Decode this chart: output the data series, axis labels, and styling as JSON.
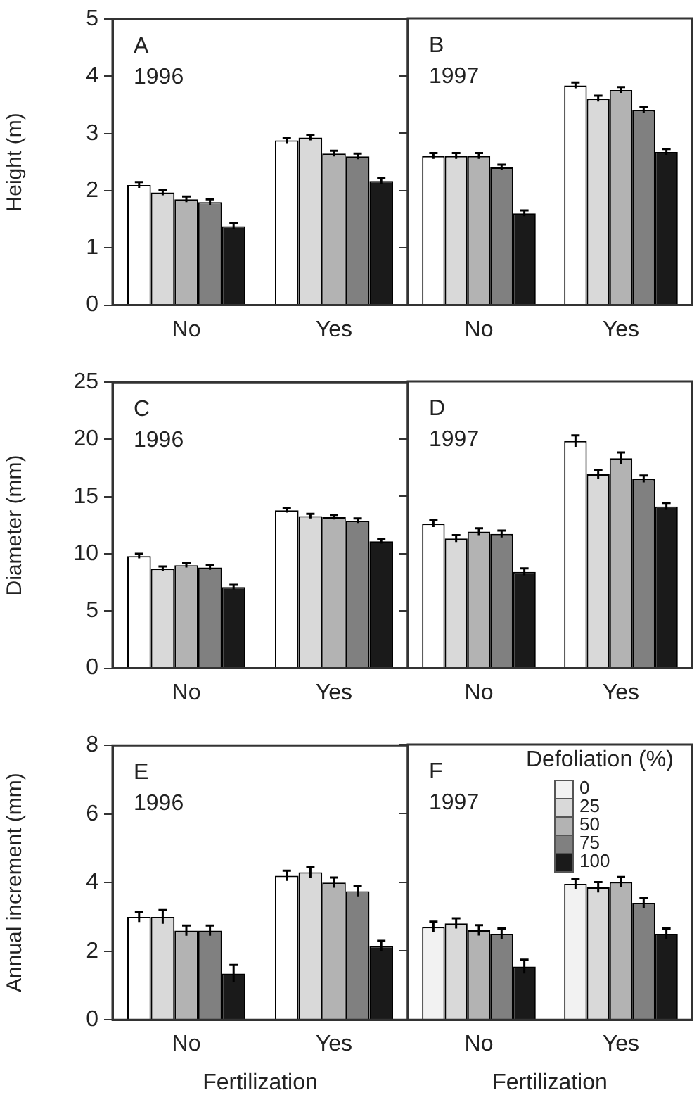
{
  "chart_data": [
    {
      "type": "bar",
      "title": "A",
      "subtitle": "1996",
      "ylabel": "Height (m)",
      "categories": [
        "No",
        "Yes"
      ],
      "ylim": [
        0,
        5
      ],
      "yticks": [
        0,
        1,
        2,
        3,
        4,
        5
      ],
      "legend": false,
      "series": [
        {
          "color": "#ffffff",
          "values": [
            2.1,
            2.88
          ],
          "errors": [
            0.05,
            0.05
          ]
        },
        {
          "color": "#d9d9d9",
          "values": [
            1.97,
            2.93
          ],
          "errors": [
            0.05,
            0.05
          ]
        },
        {
          "color": "#b3b3b3",
          "values": [
            1.85,
            2.65
          ],
          "errors": [
            0.05,
            0.05
          ]
        },
        {
          "color": "#808080",
          "values": [
            1.8,
            2.6
          ],
          "errors": [
            0.05,
            0.05
          ]
        },
        {
          "color": "#1a1a1a",
          "values": [
            1.38,
            2.17
          ],
          "errors": [
            0.05,
            0.05
          ]
        }
      ]
    },
    {
      "type": "bar",
      "title": "B",
      "subtitle": "1997",
      "categories": [
        "No",
        "Yes"
      ],
      "ylim": [
        0,
        5
      ],
      "yticks": [
        0,
        1,
        2,
        3,
        4,
        5
      ],
      "tick_labels": "x",
      "legend": false,
      "series": [
        {
          "color": "#ffffff",
          "values": [
            2.6,
            3.83
          ],
          "errors": [
            0.05,
            0.05
          ]
        },
        {
          "color": "#d9d9d9",
          "values": [
            2.6,
            3.6
          ],
          "errors": [
            0.05,
            0.05
          ]
        },
        {
          "color": "#b3b3b3",
          "values": [
            2.6,
            3.75
          ],
          "errors": [
            0.05,
            0.05
          ]
        },
        {
          "color": "#808080",
          "values": [
            2.4,
            3.4
          ],
          "errors": [
            0.05,
            0.05
          ]
        },
        {
          "color": "#1a1a1a",
          "values": [
            1.6,
            2.67
          ],
          "errors": [
            0.05,
            0.05
          ]
        }
      ]
    },
    {
      "type": "bar",
      "title": "C",
      "subtitle": "1996",
      "ylabel": "Diameter (mm)",
      "categories": [
        "No",
        "Yes"
      ],
      "ylim": [
        0,
        25
      ],
      "yticks": [
        0,
        5,
        10,
        15,
        20,
        25
      ],
      "legend": false,
      "series": [
        {
          "color": "#ffffff",
          "values": [
            9.8,
            13.8
          ],
          "errors": [
            0.2,
            0.2
          ]
        },
        {
          "color": "#d9d9d9",
          "values": [
            8.7,
            13.3
          ],
          "errors": [
            0.2,
            0.2
          ]
        },
        {
          "color": "#b3b3b3",
          "values": [
            9.0,
            13.2
          ],
          "errors": [
            0.2,
            0.2
          ]
        },
        {
          "color": "#808080",
          "values": [
            8.8,
            12.9
          ],
          "errors": [
            0.2,
            0.2
          ]
        },
        {
          "color": "#1a1a1a",
          "values": [
            7.1,
            11.1
          ],
          "errors": [
            0.2,
            0.2
          ]
        }
      ]
    },
    {
      "type": "bar",
      "title": "D",
      "subtitle": "1997",
      "categories": [
        "No",
        "Yes"
      ],
      "ylim": [
        0,
        25
      ],
      "yticks": [
        0,
        5,
        10,
        15,
        20,
        25
      ],
      "tick_labels": "x",
      "legend": false,
      "series": [
        {
          "color": "#ffffff",
          "values": [
            12.6,
            19.8
          ],
          "errors": [
            0.3,
            0.5
          ]
        },
        {
          "color": "#d9d9d9",
          "values": [
            11.3,
            16.9
          ],
          "errors": [
            0.3,
            0.4
          ]
        },
        {
          "color": "#b3b3b3",
          "values": [
            11.9,
            18.3
          ],
          "errors": [
            0.3,
            0.5
          ]
        },
        {
          "color": "#808080",
          "values": [
            11.7,
            16.5
          ],
          "errors": [
            0.3,
            0.3
          ]
        },
        {
          "color": "#1a1a1a",
          "values": [
            8.4,
            14.1
          ],
          "errors": [
            0.3,
            0.3
          ]
        }
      ]
    },
    {
      "type": "bar",
      "title": "E",
      "subtitle": "1996",
      "ylabel": "Annual increment (mm)",
      "xlabel": "Fertilization",
      "categories": [
        "No",
        "Yes"
      ],
      "ylim": [
        0,
        8
      ],
      "yticks": [
        0,
        2,
        4,
        6,
        8
      ],
      "legend": false,
      "series": [
        {
          "color": "#ffffff",
          "values": [
            3.0,
            4.2
          ],
          "errors": [
            0.15,
            0.15
          ]
        },
        {
          "color": "#d9d9d9",
          "values": [
            3.0,
            4.3
          ],
          "errors": [
            0.2,
            0.15
          ]
        },
        {
          "color": "#b3b3b3",
          "values": [
            2.6,
            4.0
          ],
          "errors": [
            0.15,
            0.15
          ]
        },
        {
          "color": "#808080",
          "values": [
            2.6,
            3.75
          ],
          "errors": [
            0.15,
            0.15
          ]
        },
        {
          "color": "#1a1a1a",
          "values": [
            1.35,
            2.15
          ],
          "errors": [
            0.25,
            0.15
          ]
        }
      ]
    },
    {
      "type": "bar",
      "title": "F",
      "subtitle": "1997",
      "xlabel": "Fertilization",
      "legend_title": "Defoliation (%)",
      "categories": [
        "No",
        "Yes"
      ],
      "ylim": [
        0,
        8
      ],
      "yticks": [
        0,
        2,
        4,
        6,
        8
      ],
      "tick_labels": "x",
      "legend": "top right",
      "series": [
        {
          "name": "0",
          "color": "#f2f2f2",
          "values": [
            2.7,
            3.95
          ],
          "errors": [
            0.15,
            0.15
          ]
        },
        {
          "name": "25",
          "color": "#d9d9d9",
          "values": [
            2.8,
            3.85
          ],
          "errors": [
            0.15,
            0.15
          ]
        },
        {
          "name": "50",
          "color": "#b3b3b3",
          "values": [
            2.6,
            4.0
          ],
          "errors": [
            0.15,
            0.15
          ]
        },
        {
          "name": "75",
          "color": "#808080",
          "values": [
            2.5,
            3.4
          ],
          "errors": [
            0.15,
            0.15
          ]
        },
        {
          "name": "100",
          "color": "#1a1a1a",
          "values": [
            1.55,
            2.5
          ],
          "errors": [
            0.2,
            0.15
          ]
        }
      ]
    }
  ]
}
